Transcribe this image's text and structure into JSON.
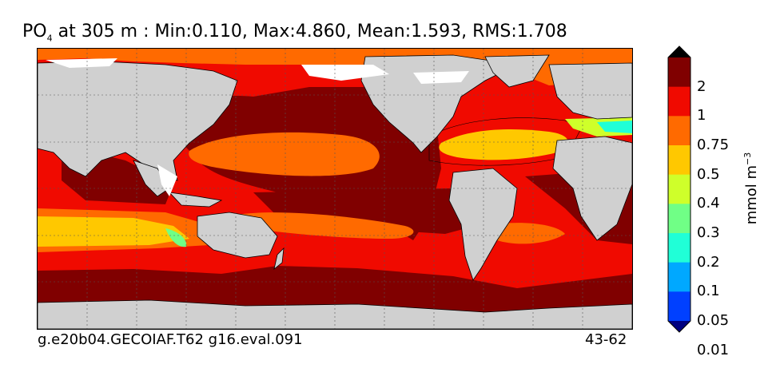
{
  "title": {
    "variable": "PO",
    "subscript": "4",
    "rest": " at 305 m : Min:0.110, Max:4.860, Mean:1.593, RMS:1.708"
  },
  "footer": {
    "left": "g.e20b04.GECOIAF.T62 g16.eval.091",
    "right": "43-62"
  },
  "colorbar": {
    "labels": [
      "2",
      "1",
      "0.75",
      "0.5",
      "0.4",
      "0.3",
      "0.2",
      "0.1",
      "0.05",
      "0.01"
    ],
    "colors": [
      "#800000",
      "#f00a00",
      "#ff6a00",
      "#ffc800",
      "#cfff2a",
      "#70ff86",
      "#20ffd7",
      "#00a8ff",
      "#0040ff",
      "#0000e8",
      "#000080"
    ],
    "units_base": "mmol m",
    "units_exp": "−3"
  },
  "map": {
    "land_color": "#d0d0d0",
    "ice_color": "#ffffff",
    "graticule": "dashed"
  }
}
